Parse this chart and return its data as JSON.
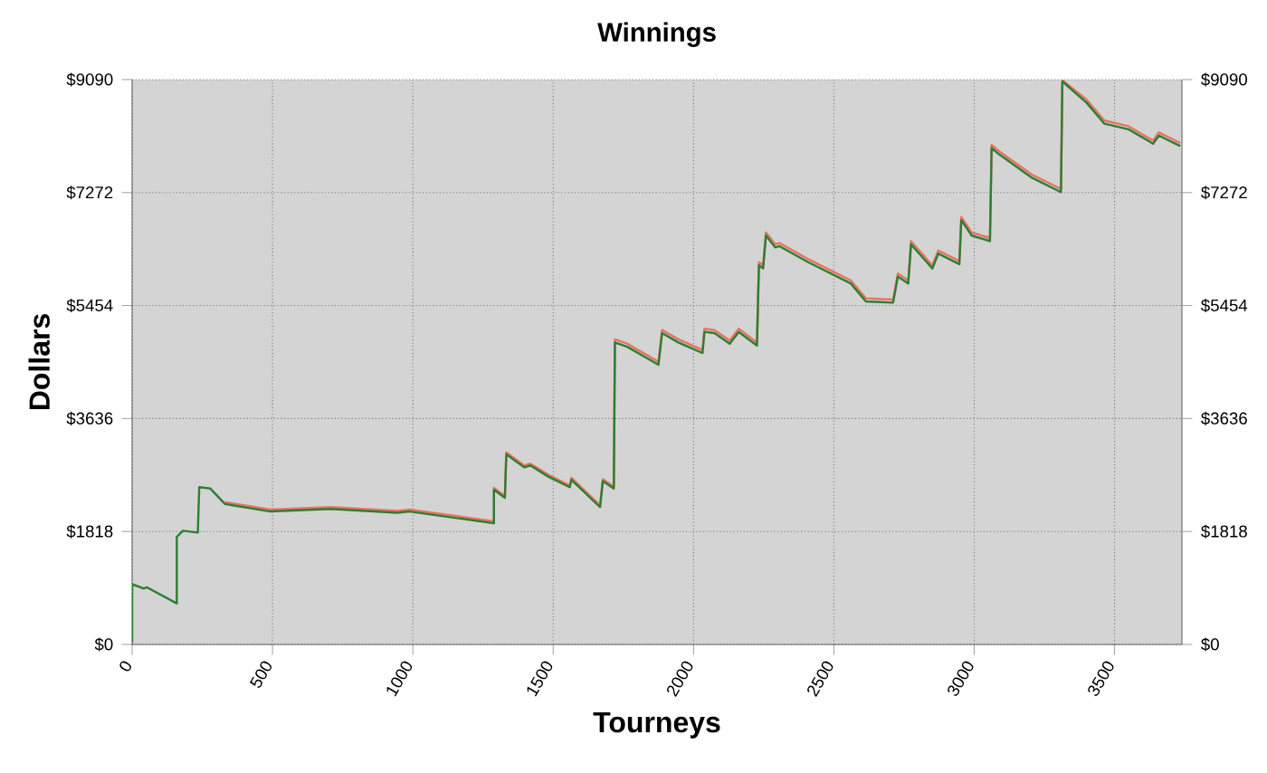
{
  "chart_data": {
    "type": "line",
    "title": "Winnings",
    "xlabel": "Tourneys",
    "ylabel": "Dollars",
    "x": [
      0,
      0,
      41,
      52,
      159,
      159,
      181,
      234,
      239,
      278,
      331,
      493,
      708,
      945,
      988,
      1289,
      1289,
      1328,
      1333,
      1397,
      1419,
      1483,
      1559,
      1565,
      1667,
      1677,
      1716,
      1720,
      1764,
      1875,
      1888,
      1946,
      2032,
      2039,
      2075,
      2129,
      2161,
      2226,
      2233,
      2248,
      2258,
      2291,
      2306,
      2409,
      2560,
      2614,
      2711,
      2728,
      2765,
      2775,
      2851,
      2872,
      2947,
      2954,
      2991,
      3056,
      3062,
      3088,
      3206,
      3309,
      3314,
      3400,
      3464,
      3550,
      3637,
      3658,
      3734
    ],
    "series": [
      {
        "color": "#e8735f",
        "values": [
          null,
          null,
          null,
          null,
          null,
          null,
          null,
          null,
          null,
          null,
          2290,
          2170,
          2210,
          2150,
          2170,
          1980,
          2520,
          2390,
          3090,
          2880,
          2910,
          2730,
          2560,
          2680,
          2240,
          2660,
          2540,
          4910,
          4840,
          4550,
          5060,
          4910,
          4740,
          5080,
          5060,
          4890,
          5080,
          4860,
          6150,
          6100,
          6630,
          6440,
          6460,
          6200,
          5860,
          5570,
          5550,
          5970,
          5860,
          6490,
          6100,
          6340,
          6170,
          6880,
          6630,
          6540,
          8040,
          7940,
          7560,
          7330,
          9080,
          8770,
          8430,
          8340,
          8110,
          8240,
          8070
        ]
      },
      {
        "color": "#2e7d32",
        "values": [
          30,
          970,
          900,
          920,
          660,
          1730,
          1830,
          1800,
          2530,
          2510,
          2260,
          2140,
          2180,
          2120,
          2140,
          1950,
          2490,
          2360,
          3060,
          2850,
          2880,
          2700,
          2530,
          2650,
          2210,
          2630,
          2510,
          4860,
          4790,
          4500,
          5010,
          4860,
          4690,
          5030,
          5010,
          4840,
          5030,
          4810,
          6100,
          6050,
          6580,
          6390,
          6410,
          6150,
          5810,
          5520,
          5500,
          5920,
          5810,
          6440,
          6050,
          6290,
          6120,
          6830,
          6580,
          6490,
          7990,
          7890,
          7510,
          7280,
          9060,
          8720,
          8380,
          8290,
          8060,
          8190,
          8020
        ]
      }
    ],
    "xlim": [
      0,
      3740
    ],
    "xticks": [
      0,
      500,
      1000,
      1500,
      2000,
      2500,
      3000,
      3500
    ],
    "ylim": [
      0,
      9090
    ],
    "yticks": [
      {
        "value": 0,
        "label": "$0"
      },
      {
        "value": 1818,
        "label": "$1818"
      },
      {
        "value": 3636,
        "label": "$3636"
      },
      {
        "value": 5454,
        "label": "$5454"
      },
      {
        "value": 7272,
        "label": "$7272"
      },
      {
        "value": 9090,
        "label": "$9090"
      }
    ],
    "y2lim": [
      0,
      9090
    ],
    "y2ticks": [
      {
        "value": 0,
        "label": "$0"
      },
      {
        "value": 1818,
        "label": "$1818"
      },
      {
        "value": 3636,
        "label": "$3636"
      },
      {
        "value": 5454,
        "label": "$5454"
      },
      {
        "value": 7272,
        "label": "$7272"
      },
      {
        "value": 9090,
        "label": "$9090"
      }
    ],
    "grid": true
  }
}
